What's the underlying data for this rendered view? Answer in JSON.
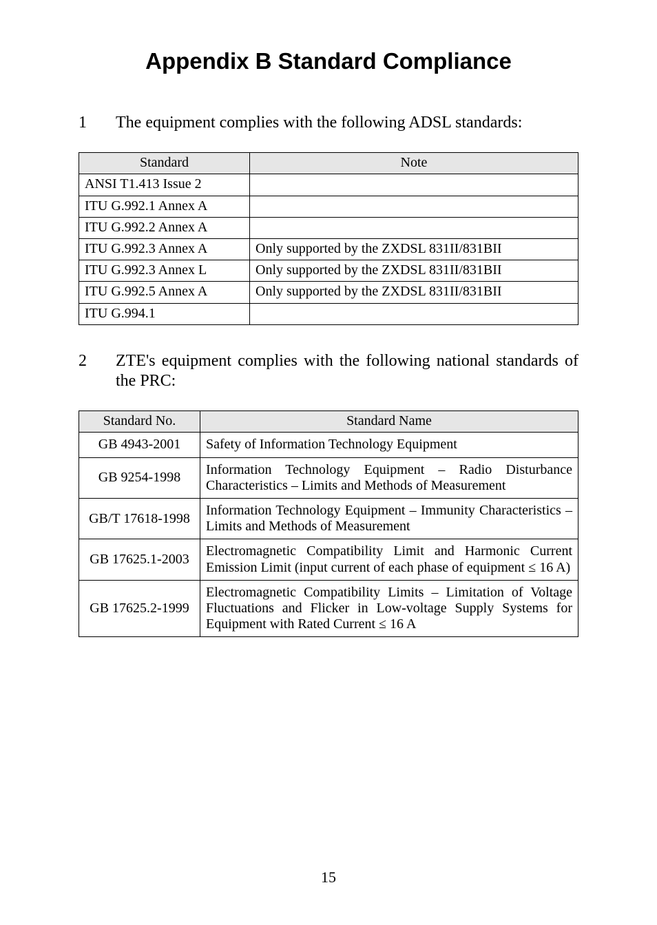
{
  "heading": "Appendix B Standard Compliance",
  "para1": {
    "num": "1",
    "text": "The equipment complies with the following ADSL standards:"
  },
  "table1": {
    "headers": {
      "c0": "Standard",
      "c1": "Note"
    },
    "rows": [
      {
        "c0": "ANSI T1.413 Issue 2",
        "c1": ""
      },
      {
        "c0": "ITU G.992.1 Annex A",
        "c1": ""
      },
      {
        "c0": "ITU G.992.2 Annex A",
        "c1": ""
      },
      {
        "c0": "ITU G.992.3 Annex A",
        "c1": "Only supported by the ZXDSL 831II/831BII"
      },
      {
        "c0": "ITU G.992.3 Annex L",
        "c1": "Only supported by the ZXDSL 831II/831BII"
      },
      {
        "c0": "ITU G.992.5 Annex A",
        "c1": "Only supported by the ZXDSL 831II/831BII"
      },
      {
        "c0": "ITU G.994.1",
        "c1": ""
      }
    ]
  },
  "para2": {
    "num": "2",
    "text": "ZTE's equipment complies with the following national standards of the PRC:"
  },
  "table2": {
    "headers": {
      "c0": "Standard No.",
      "c1": "Standard Name"
    },
    "rows": [
      {
        "c0": "GB 4943-2001",
        "c1": "Safety of Information Technology Equipment"
      },
      {
        "c0": "GB 9254-1998",
        "c1": "Information Technology Equipment – Radio Disturbance Characteristics – Limits and Methods of Measurement"
      },
      {
        "c0": "GB/T 17618-1998",
        "c1": "Information Technology Equipment – Immunity Characteristics – Limits and Methods of Measurement"
      },
      {
        "c0": "GB 17625.1-2003",
        "c1": "Electromagnetic Compatibility Limit and Harmonic Current Emission Limit (input current of each phase of equipment ≤ 16 A)"
      },
      {
        "c0": "GB 17625.2-1999",
        "c1": "Electromagnetic Compatibility Limits – Limitation of Voltage Fluctuations and Flicker in Low-voltage Supply Systems for Equipment with Rated Current ≤ 16 A"
      }
    ]
  },
  "pageNumber": "15"
}
